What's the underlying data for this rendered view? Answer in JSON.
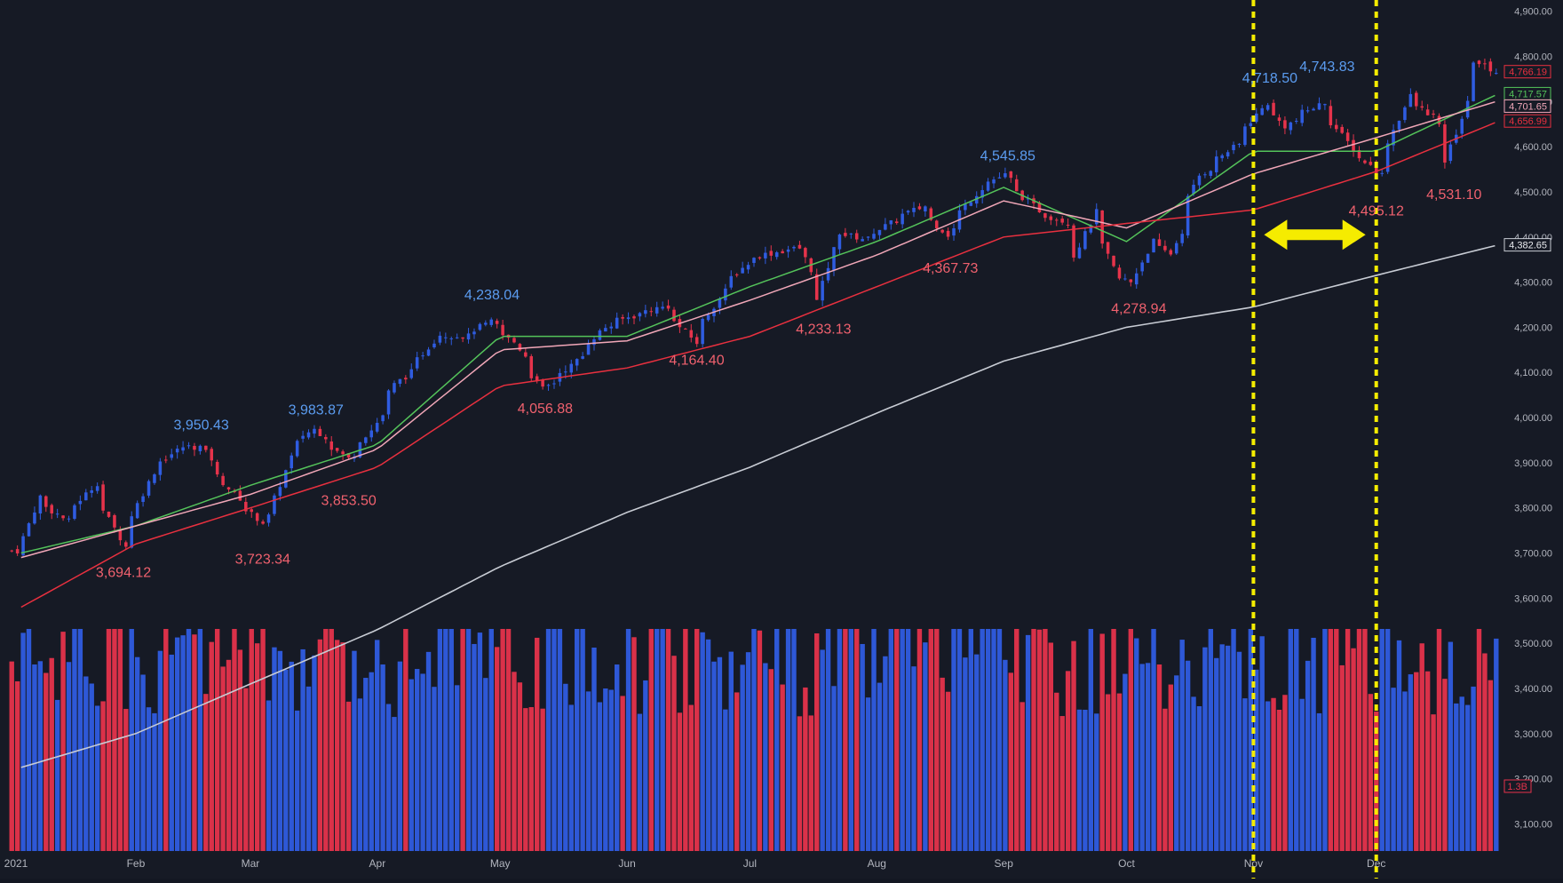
{
  "colors": {
    "background": "#161a25",
    "up": "#2f5ce0",
    "down": "#e5334b",
    "high_label": "#5b9cf0",
    "low_label": "#f0616e",
    "ma_fast": "#54c35a",
    "ma_mid": "#f1a7b8",
    "ma_slow": "#e8303f",
    "ma_long": "#c8ccd4",
    "marker": "#f5ec00",
    "axis_text": "#b2b5be"
  },
  "chart_data": {
    "type": "candlestick",
    "title": "",
    "xlabel": "",
    "ylabel": "",
    "ylim": [
      3030,
      4925
    ],
    "y_ticks": [
      3100,
      3200,
      3300,
      3400,
      3500,
      3600,
      3700,
      3800,
      3900,
      4000,
      4100,
      4200,
      4300,
      4400,
      4500,
      4600,
      4700,
      4800,
      4900
    ],
    "y_tick_labels": [
      "3,100.00",
      "3,200.00",
      "3,300.00",
      "3,400.00",
      "3,500.00",
      "3,600.00",
      "3,700.00",
      "3,800.00",
      "3,900.00",
      "4,000.00",
      "4,100.00",
      "4,200.00",
      "4,300.00",
      "4,400.00",
      "4,500.00",
      "4,600.00",
      "4,700.00",
      "4,800.00",
      "4,900.00"
    ],
    "x_range": [
      "2021-01-01",
      "2021-12-31"
    ],
    "x_ticks": [
      {
        "date": "2021-01-01",
        "label": "2021"
      },
      {
        "date": "2021-02-01",
        "label": "Feb"
      },
      {
        "date": "2021-03-01",
        "label": "Mar"
      },
      {
        "date": "2021-04-01",
        "label": "Apr"
      },
      {
        "date": "2021-05-01",
        "label": "May"
      },
      {
        "date": "2021-06-01",
        "label": "Jun"
      },
      {
        "date": "2021-07-01",
        "label": "Jul"
      },
      {
        "date": "2021-08-01",
        "label": "Aug"
      },
      {
        "date": "2021-09-01",
        "label": "Sep"
      },
      {
        "date": "2021-10-01",
        "label": "Oct"
      },
      {
        "date": "2021-11-01",
        "label": "Nov"
      },
      {
        "date": "2021-12-01",
        "label": "Dec"
      }
    ],
    "price_path": [
      [
        "2021-01-04",
        3705
      ],
      [
        "2021-01-08",
        3825
      ],
      [
        "2021-01-15",
        3770
      ],
      [
        "2021-01-22",
        3855
      ],
      [
        "2021-01-29",
        3714
      ],
      [
        "2021-02-05",
        3880
      ],
      [
        "2021-02-12",
        3935
      ],
      [
        "2021-02-17",
        3935
      ],
      [
        "2021-02-25",
        3830
      ],
      [
        "2021-03-04",
        3768
      ],
      [
        "2021-03-08",
        3821
      ],
      [
        "2021-03-12",
        3943
      ],
      [
        "2021-03-17",
        3974
      ],
      [
        "2021-03-25",
        3909
      ],
      [
        "2021-03-31",
        3972
      ],
      [
        "2021-04-06",
        4073
      ],
      [
        "2021-04-12",
        4128
      ],
      [
        "2021-04-16",
        4185
      ],
      [
        "2021-04-23",
        4180
      ],
      [
        "2021-04-29",
        4211
      ],
      [
        "2021-05-05",
        4167
      ],
      [
        "2021-05-12",
        4063
      ],
      [
        "2021-05-19",
        4115
      ],
      [
        "2021-05-27",
        4200
      ],
      [
        "2021-06-04",
        4229
      ],
      [
        "2021-06-11",
        4247
      ],
      [
        "2021-06-18",
        4166
      ],
      [
        "2021-06-25",
        4280
      ],
      [
        "2021-07-02",
        4352
      ],
      [
        "2021-07-09",
        4369
      ],
      [
        "2021-07-14",
        4375
      ],
      [
        "2021-07-19",
        4258
      ],
      [
        "2021-07-23",
        4411
      ],
      [
        "2021-07-30",
        4395
      ],
      [
        "2021-08-06",
        4436
      ],
      [
        "2021-08-13",
        4468
      ],
      [
        "2021-08-19",
        4405
      ],
      [
        "2021-08-27",
        4509
      ],
      [
        "2021-09-02",
        4537
      ],
      [
        "2021-09-10",
        4459
      ],
      [
        "2021-09-17",
        4433
      ],
      [
        "2021-09-20",
        4358
      ],
      [
        "2021-09-24",
        4455
      ],
      [
        "2021-09-30",
        4307
      ],
      [
        "2021-10-04",
        4300
      ],
      [
        "2021-10-08",
        4391
      ],
      [
        "2021-10-13",
        4363
      ],
      [
        "2021-10-20",
        4536
      ],
      [
        "2021-10-29",
        4605
      ],
      [
        "2021-11-05",
        4697
      ],
      [
        "2021-11-10",
        4646
      ],
      [
        "2021-11-19",
        4698
      ],
      [
        "2021-11-26",
        4595
      ],
      [
        "2021-11-30",
        4567
      ],
      [
        "2021-12-03",
        4538
      ],
      [
        "2021-12-10",
        4712
      ],
      [
        "2021-12-16",
        4668
      ],
      [
        "2021-12-20",
        4568
      ],
      [
        "2021-12-27",
        4791
      ],
      [
        "2021-12-31",
        4766
      ]
    ],
    "series": [
      {
        "type": "candlestick",
        "values": "daily OHLC (approximate path shown above)"
      },
      {
        "type": "line",
        "values": [
          [
            "2021-01-04",
            3700
          ],
          [
            "2021-02-01",
            3760
          ],
          [
            "2021-03-01",
            3850
          ],
          [
            "2021-04-01",
            3940
          ],
          [
            "2021-05-01",
            4180
          ],
          [
            "2021-06-01",
            4180
          ],
          [
            "2021-07-01",
            4290
          ],
          [
            "2021-08-01",
            4390
          ],
          [
            "2021-09-01",
            4510
          ],
          [
            "2021-10-01",
            4390
          ],
          [
            "2021-11-01",
            4590
          ],
          [
            "2021-12-01",
            4590
          ],
          [
            "2021-12-31",
            4718
          ]
        ]
      },
      {
        "type": "line",
        "values": [
          [
            "2021-01-04",
            3690
          ],
          [
            "2021-02-01",
            3760
          ],
          [
            "2021-03-01",
            3830
          ],
          [
            "2021-04-01",
            3930
          ],
          [
            "2021-05-01",
            4150
          ],
          [
            "2021-06-01",
            4170
          ],
          [
            "2021-07-01",
            4260
          ],
          [
            "2021-08-01",
            4360
          ],
          [
            "2021-09-01",
            4480
          ],
          [
            "2021-10-01",
            4420
          ],
          [
            "2021-11-01",
            4540
          ],
          [
            "2021-12-01",
            4620
          ],
          [
            "2021-12-31",
            4702
          ]
        ]
      },
      {
        "type": "line",
        "values": [
          [
            "2021-01-04",
            3580
          ],
          [
            "2021-02-01",
            3720
          ],
          [
            "2021-03-01",
            3800
          ],
          [
            "2021-04-01",
            3890
          ],
          [
            "2021-05-01",
            4070
          ],
          [
            "2021-06-01",
            4110
          ],
          [
            "2021-07-01",
            4180
          ],
          [
            "2021-08-01",
            4290
          ],
          [
            "2021-09-01",
            4400
          ],
          [
            "2021-10-01",
            4430
          ],
          [
            "2021-11-01",
            4460
          ],
          [
            "2021-12-01",
            4545
          ],
          [
            "2021-12-31",
            4657
          ]
        ]
      },
      {
        "type": "line",
        "values": [
          [
            "2021-01-04",
            3225
          ],
          [
            "2021-02-01",
            3300
          ],
          [
            "2021-03-01",
            3410
          ],
          [
            "2021-04-01",
            3530
          ],
          [
            "2021-05-01",
            3670
          ],
          [
            "2021-06-01",
            3790
          ],
          [
            "2021-07-01",
            3890
          ],
          [
            "2021-08-01",
            4010
          ],
          [
            "2021-09-01",
            4125
          ],
          [
            "2021-10-01",
            4200
          ],
          [
            "2021-11-01",
            4245
          ],
          [
            "2021-12-01",
            4315
          ],
          [
            "2021-12-31",
            4383
          ]
        ]
      }
    ],
    "annotations": [
      {
        "date": "2021-02-17",
        "value": 3950.43,
        "label": "3,950.43",
        "kind": "high"
      },
      {
        "date": "2021-03-17",
        "value": 3983.87,
        "label": "3,983.87",
        "kind": "high"
      },
      {
        "date": "2021-04-29",
        "value": 4238.04,
        "label": "4,238.04",
        "kind": "high"
      },
      {
        "date": "2021-09-02",
        "value": 4545.85,
        "label": "4,545.85",
        "kind": "high"
      },
      {
        "date": "2021-11-05",
        "value": 4718.5,
        "label": "4,718.50",
        "kind": "high"
      },
      {
        "date": "2021-11-19",
        "value": 4743.83,
        "label": "4,743.83",
        "kind": "high"
      },
      {
        "date": "2021-01-29",
        "value": 3694.12,
        "label": "3,694.12",
        "kind": "low"
      },
      {
        "date": "2021-03-04",
        "value": 3723.34,
        "label": "3,723.34",
        "kind": "low"
      },
      {
        "date": "2021-03-25",
        "value": 3853.5,
        "label": "3,853.50",
        "kind": "low"
      },
      {
        "date": "2021-05-12",
        "value": 4056.88,
        "label": "4,056.88",
        "kind": "low"
      },
      {
        "date": "2021-06-18",
        "value": 4164.4,
        "label": "4,164.40",
        "kind": "low"
      },
      {
        "date": "2021-07-19",
        "value": 4233.13,
        "label": "4,233.13",
        "kind": "low"
      },
      {
        "date": "2021-08-19",
        "value": 4367.73,
        "label": "4,367.73",
        "kind": "low"
      },
      {
        "date": "2021-10-04",
        "value": 4278.94,
        "label": "4,278.94",
        "kind": "low"
      },
      {
        "date": "2021-12-01",
        "value": 4495.12,
        "label": "4,495.12",
        "kind": "low"
      },
      {
        "date": "2021-12-20",
        "value": 4531.1,
        "label": "4,531.10",
        "kind": "low"
      }
    ],
    "price_tags": [
      {
        "value": 4766.19,
        "label": "4,766.19",
        "color": "#e8303f"
      },
      {
        "value": 4717.57,
        "label": "4,717.57",
        "color": "#54c35a"
      },
      {
        "value": 4701.65,
        "label": "4,701.65",
        "color": "#f1a7b8"
      },
      {
        "value": 4656.99,
        "label": "4,656.99",
        "color": "#e8303f"
      },
      {
        "value": 4382.65,
        "label": "4,382.65",
        "color": "#c8ccd4"
      }
    ],
    "volume": {
      "ylim": [
        0,
        6000000000
      ],
      "last_label": "1.3B",
      "typical": 2300000000
    },
    "vertical_markers": [
      "2021-11-01",
      "2021-12-01"
    ],
    "range_arrow": {
      "from": "2021-11-01",
      "to": "2021-12-01"
    }
  }
}
